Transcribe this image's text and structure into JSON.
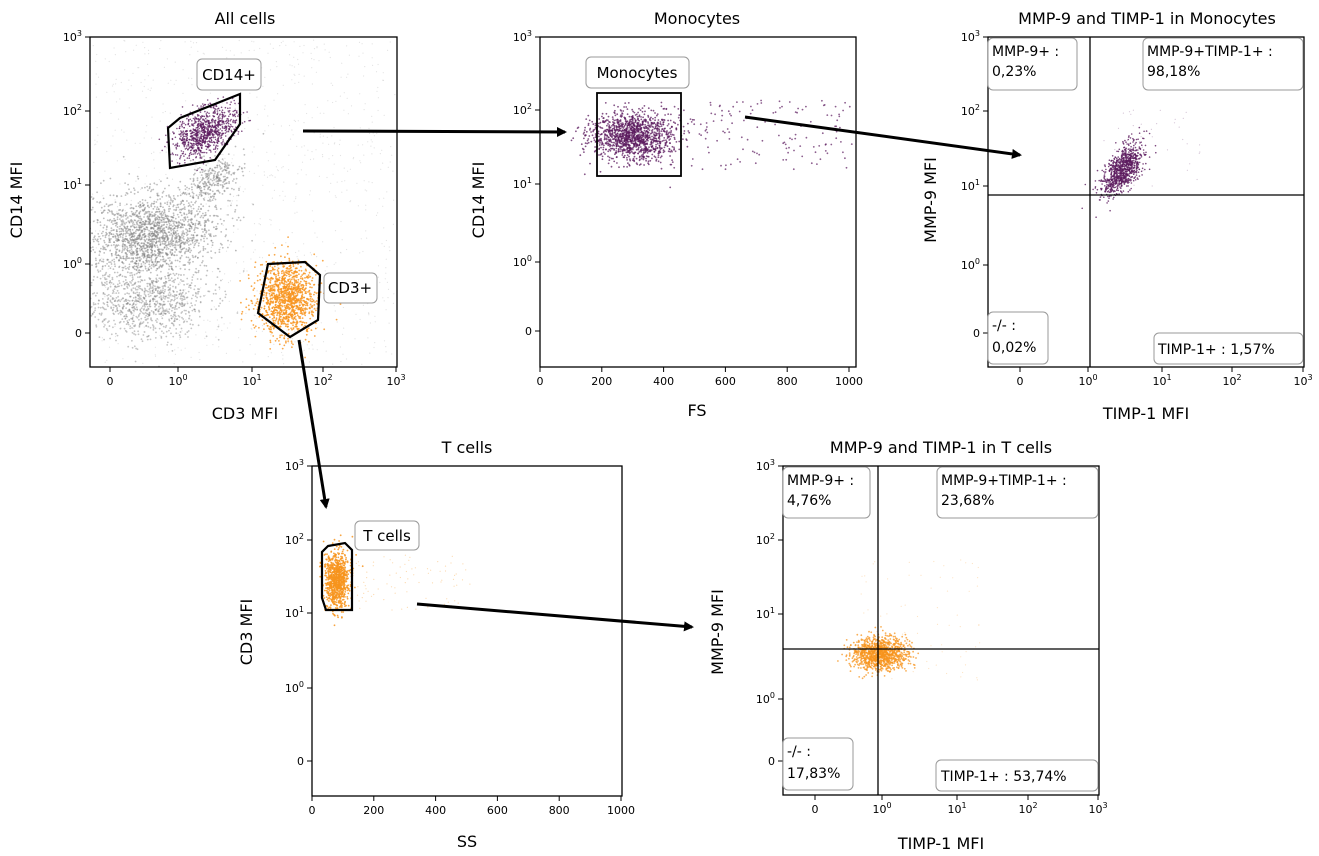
{
  "chart_data": [
    {
      "id": "all_cells",
      "type": "scatter",
      "title": "All cells",
      "xlabel": "CD3 MFI",
      "ylabel": "CD14 MFI",
      "xscale": "log-biexponential",
      "yscale": "log-biexponential",
      "x_ticks": [
        "0",
        "10^0",
        "10^1",
        "10^2",
        "10^3"
      ],
      "y_ticks": [
        "0",
        "10^0",
        "10^1",
        "10^2",
        "10^3"
      ],
      "gates": [
        {
          "label": "CD14+",
          "color": "#5b1a5e"
        },
        {
          "label": "CD3+",
          "color": "#f7941d"
        }
      ],
      "populations": [
        {
          "name": "CD14+",
          "color": "#5b1a5e",
          "x_center": 2.5,
          "y_center": 50
        },
        {
          "name": "CD3+",
          "color": "#f7941d",
          "x_center": 25,
          "y_center": 0.45
        },
        {
          "name": "other",
          "color": "#808080",
          "x_center": 0.7,
          "y_center": 2.5
        }
      ]
    },
    {
      "id": "monocytes",
      "type": "scatter",
      "title": "Monocytes",
      "xlabel": "FS",
      "ylabel": "CD14 MFI",
      "xlim": [
        0,
        1024
      ],
      "x_ticks": [
        "0",
        "200",
        "400",
        "600",
        "800",
        "1000"
      ],
      "y_ticks": [
        "0",
        "10^0",
        "10^1",
        "10^2",
        "10^3"
      ],
      "gates": [
        {
          "label": "Monocytes",
          "color": "#000000"
        }
      ],
      "populations": [
        {
          "name": "Monocytes",
          "color": "#5b1a5e",
          "x_center": 300,
          "y_center": 35
        }
      ]
    },
    {
      "id": "mmp9_timp1_monocytes",
      "type": "scatter",
      "title": "MMP-9 and TIMP-1 in Monocytes",
      "xlabel": "TIMP-1 MFI",
      "ylabel": "MMP-9 MFI",
      "x_ticks": [
        "0",
        "10^0",
        "10^1",
        "10^2",
        "10^3"
      ],
      "y_ticks": [
        "0",
        "10^0",
        "10^1",
        "10^2",
        "10^3"
      ],
      "quadrants": {
        "upper_left": {
          "label": "MMP-9+ :",
          "value": "0,23%"
        },
        "upper_right": {
          "label": "MMP-9+TIMP-1+ :",
          "value": "98,18%"
        },
        "lower_left": {
          "label": "-/- :",
          "value": "0,02%"
        },
        "lower_right": {
          "label": "TIMP-1+ : 1,57%"
        }
      },
      "populations": [
        {
          "name": "Monocytes",
          "color": "#5b1a5e",
          "x_center": 3,
          "y_center": 15
        }
      ]
    },
    {
      "id": "t_cells",
      "type": "scatter",
      "title": "T cells",
      "xlabel": "SS",
      "ylabel": "CD3 MFI",
      "xlim": [
        0,
        1024
      ],
      "x_ticks": [
        "0",
        "200",
        "400",
        "600",
        "800",
        "1000"
      ],
      "y_ticks": [
        "0",
        "10^0",
        "10^1",
        "10^2",
        "10^3"
      ],
      "gates": [
        {
          "label": "T cells",
          "color": "#000000"
        }
      ],
      "populations": [
        {
          "name": "T cells",
          "color": "#f7941d",
          "x_center": 90,
          "y_center": 30
        }
      ]
    },
    {
      "id": "mmp9_timp1_tcells",
      "type": "scatter",
      "title": "MMP-9 and TIMP-1 in T cells",
      "xlabel": "TIMP-1 MFI",
      "ylabel": "MMP-9 MFI",
      "x_ticks": [
        "0",
        "10^0",
        "10^1",
        "10^2",
        "10^3"
      ],
      "y_ticks": [
        "0",
        "10^0",
        "10^1",
        "10^2",
        "10^3"
      ],
      "quadrants": {
        "upper_left": {
          "label": "MMP-9+ :",
          "value": "4,76%"
        },
        "upper_right": {
          "label": "MMP-9+TIMP-1+ :",
          "value": "23,68%"
        },
        "lower_left": {
          "label": "-/- :",
          "value": "17,83%"
        },
        "lower_right": {
          "label": "TIMP-1+ : 53,74%"
        }
      },
      "populations": [
        {
          "name": "T cells",
          "color": "#f7941d",
          "x_center": 1.2,
          "y_center": 3
        }
      ]
    }
  ]
}
